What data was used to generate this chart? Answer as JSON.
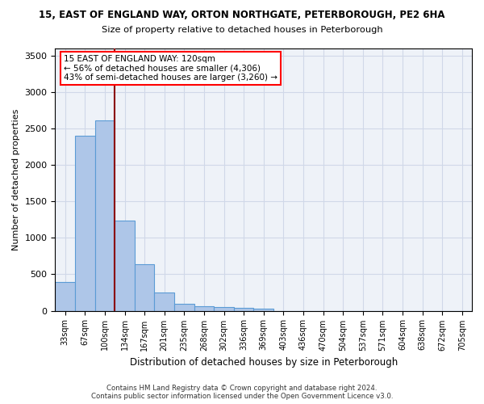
{
  "title": "15, EAST OF ENGLAND WAY, ORTON NORTHGATE, PETERBOROUGH, PE2 6HA",
  "subtitle": "Size of property relative to detached houses in Peterborough",
  "xlabel": "Distribution of detached houses by size in Peterborough",
  "ylabel": "Number of detached properties",
  "bar_values": [
    390,
    2400,
    2610,
    1240,
    640,
    255,
    90,
    60,
    55,
    45,
    30,
    0,
    0,
    0,
    0,
    0,
    0,
    0,
    0,
    0,
    0
  ],
  "categories": [
    "33sqm",
    "67sqm",
    "100sqm",
    "134sqm",
    "167sqm",
    "201sqm",
    "235sqm",
    "268sqm",
    "302sqm",
    "336sqm",
    "369sqm",
    "403sqm",
    "436sqm",
    "470sqm",
    "504sqm",
    "537sqm",
    "571sqm",
    "604sqm",
    "638sqm",
    "672sqm",
    "705sqm"
  ],
  "bar_color": "#aec6e8",
  "bar_edge_color": "#5b9bd5",
  "grid_color": "#d0d8e8",
  "background_color": "#eef2f8",
  "annotation_line1": "15 EAST OF ENGLAND WAY: 120sqm",
  "annotation_line2": "← 56% of detached houses are smaller (4,306)",
  "annotation_line3": "43% of semi-detached houses are larger (3,260) →",
  "annotation_box_color": "white",
  "annotation_box_edge_color": "red",
  "ref_line_color": "#8b0000",
  "ylim": [
    0,
    3600
  ],
  "yticks": [
    0,
    500,
    1000,
    1500,
    2000,
    2500,
    3000,
    3500
  ],
  "footer_line1": "Contains HM Land Registry data © Crown copyright and database right 2024.",
  "footer_line2": "Contains public sector information licensed under the Open Government Licence v3.0."
}
